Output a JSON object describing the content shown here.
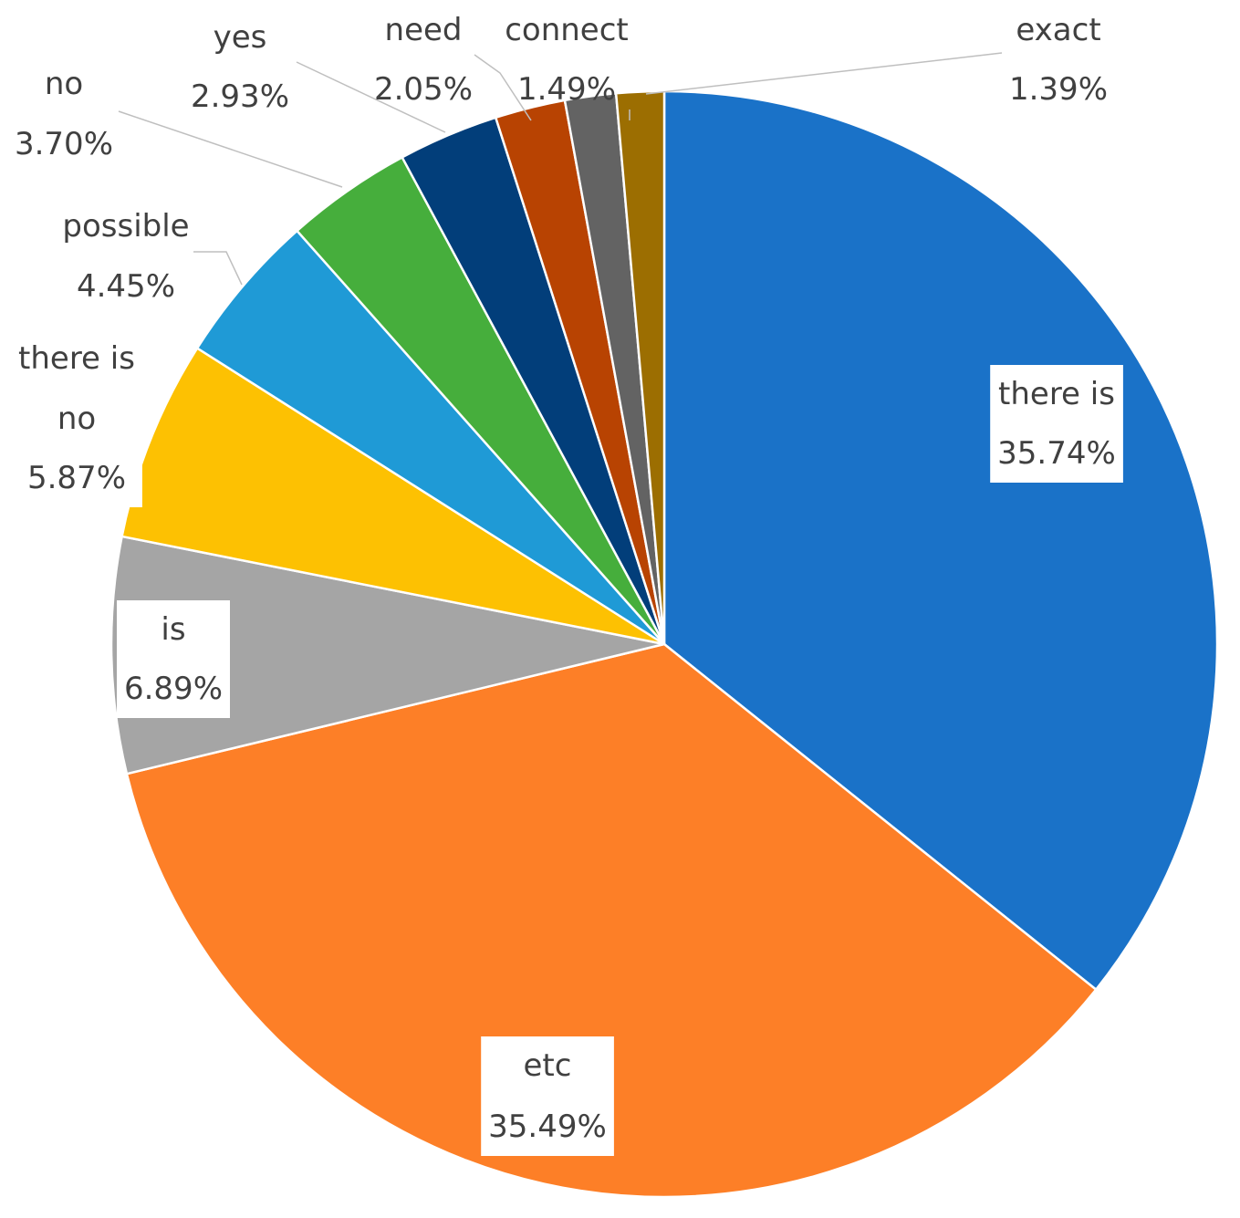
{
  "chart_data": {
    "type": "pie",
    "title": "",
    "start_angle_deg": 0,
    "direction": "clockwise",
    "slices": [
      {
        "label": "there is",
        "value": 35.74,
        "display": "35.74%",
        "color": "#1a72c8"
      },
      {
        "label": "etc",
        "value": 35.49,
        "display": "35.49%",
        "color": "#fd7f27"
      },
      {
        "label": "is",
        "value": 6.89,
        "display": "6.89%",
        "color": "#a5a5a5"
      },
      {
        "label": "there is no",
        "value": 5.87,
        "display": "5.87%",
        "color": "#fdc102"
      },
      {
        "label": "possible",
        "value": 4.45,
        "display": "4.45%",
        "color": "#1f9ad6"
      },
      {
        "label": "no",
        "value": 3.7,
        "display": "3.70%",
        "color": "#46ae3c"
      },
      {
        "label": "yes",
        "value": 2.93,
        "display": "2.93%",
        "color": "#023e7a"
      },
      {
        "label": "need",
        "value": 2.05,
        "display": "2.05%",
        "color": "#b84302"
      },
      {
        "label": "connect",
        "value": 1.49,
        "display": "1.49%",
        "color": "#636363"
      },
      {
        "label": "exact",
        "value": 1.39,
        "display": "1.39%",
        "color": "#9c6e01"
      }
    ]
  }
}
